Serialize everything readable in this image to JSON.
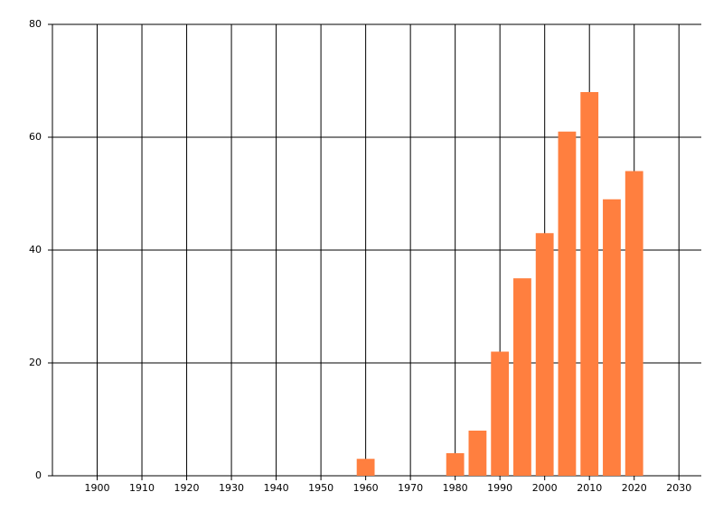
{
  "chart_data": {
    "type": "bar",
    "x": [
      1960,
      1980,
      1985,
      1990,
      1995,
      2000,
      2005,
      2010,
      2015,
      2020
    ],
    "values": [
      3,
      4,
      8,
      22,
      35,
      43,
      61,
      68,
      49,
      54
    ],
    "color": "#ff7f3f",
    "xlim": [
      1890,
      2035
    ],
    "xticks": [
      1900,
      1910,
      1920,
      1930,
      1940,
      1950,
      1960,
      1970,
      1980,
      1990,
      2000,
      2010,
      2020,
      2030
    ],
    "ylim": [
      0,
      80
    ],
    "yticks": [
      0,
      20,
      40,
      60,
      80
    ],
    "grid": true
  }
}
